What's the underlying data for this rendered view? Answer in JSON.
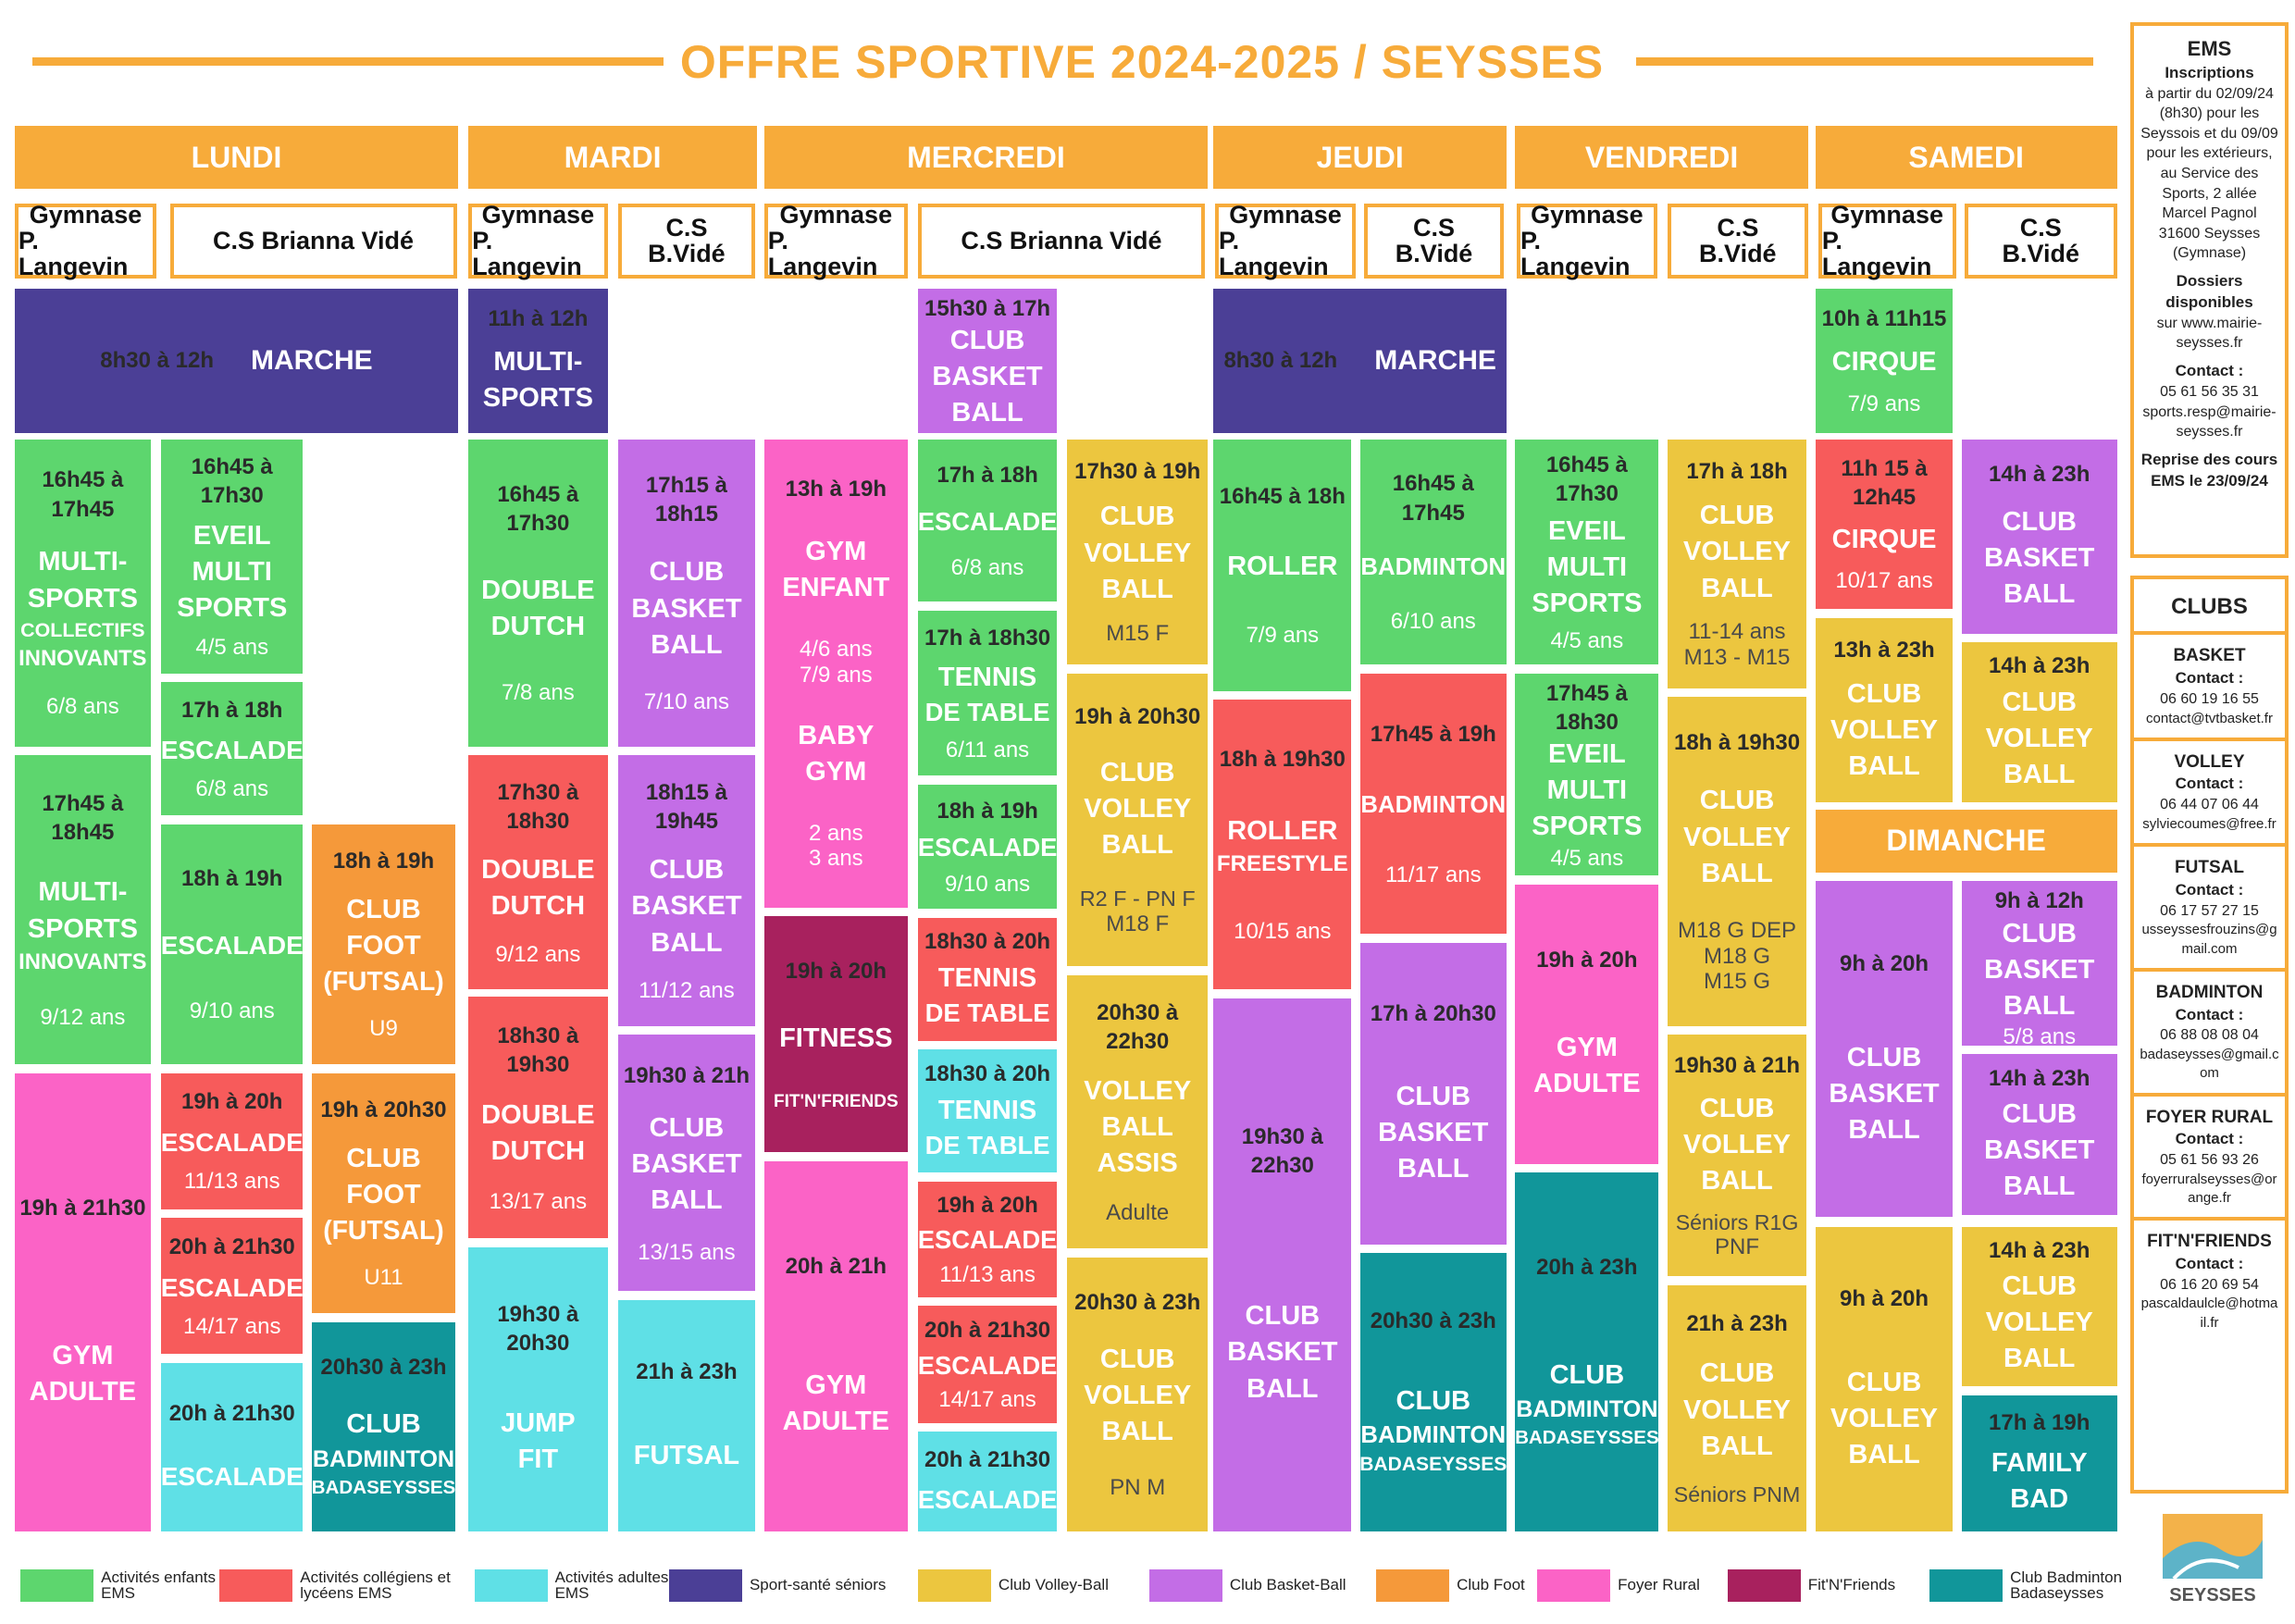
{
  "title": "OFFRE SPORTIVE 2024-2025 / SEYSSES",
  "days": [
    "LUNDI",
    "MARDI",
    "MERCREDI",
    "JEUDI",
    "VENDREDI",
    "SAMEDI"
  ],
  "dimanche": "DIMANCHE",
  "venues": [
    [
      "Gymnase",
      "P. Langevin"
    ],
    [
      "C.S Brianna Vidé"
    ],
    [
      "Gymnase",
      "P. Langevin"
    ],
    [
      "C.S",
      "B.Vidé"
    ],
    [
      "Gymnase",
      "P. Langevin"
    ],
    [
      "C.S Brianna Vidé"
    ],
    [
      "Gymnase",
      "P. Langevin"
    ],
    [
      "C.S",
      "B.Vidé"
    ],
    [
      "Gymnase",
      "P. Langevin"
    ],
    [
      "C.S",
      "B.Vidé"
    ],
    [
      "Gymnase",
      "P. Langevin"
    ],
    [
      "C.S",
      "B.Vidé"
    ]
  ],
  "blocks": [
    {
      "color": "#4b3f96",
      "time": "8h30 à 12h",
      "title": [
        "MARCHE"
      ],
      "info": []
    },
    {
      "color": "#5dd66e",
      "time": "16h45 à 17h45",
      "title": [
        "MULTI-",
        "SPORTS",
        "COLLECTIFS",
        "INNOVANTS"
      ],
      "info": [
        "6/8 ans"
      ]
    },
    {
      "color": "#5dd66e",
      "time": "17h45 à 18h45",
      "title": [
        "MULTI-",
        "SPORTS",
        "INNOVANTS"
      ],
      "info": [
        "9/12 ans"
      ]
    },
    {
      "color": "#fb63c6",
      "time": "19h à 21h30",
      "title": [
        "GYM",
        "ADULTE"
      ],
      "info": []
    },
    {
      "color": "#5dd66e",
      "time": "16h45 à 17h30",
      "title": [
        "EVEIL",
        "MULTI",
        "SPORTS"
      ],
      "info": [
        "4/5 ans"
      ]
    },
    {
      "color": "#5dd66e",
      "time": "17h à 18h",
      "title": [
        "ESCALADE"
      ],
      "info": [
        "6/8 ans"
      ]
    },
    {
      "color": "#5dd66e",
      "time": "18h à 19h",
      "title": [
        "ESCALADE"
      ],
      "info": [
        "9/10 ans"
      ]
    },
    {
      "color": "#f75b5b",
      "time": "19h à 20h",
      "title": [
        "ESCALADE"
      ],
      "info": [
        "11/13 ans"
      ]
    },
    {
      "color": "#f75b5b",
      "time": "20h à 21h30",
      "title": [
        "ESCALADE"
      ],
      "info": [
        "14/17 ans"
      ]
    },
    {
      "color": "#5fe0e6",
      "time": "20h à 21h30",
      "title": [
        "ESCALADE"
      ],
      "info": []
    },
    {
      "color": "#f5993a",
      "time": "18h à 19h",
      "title": [
        "CLUB",
        "FOOT",
        "(FUTSAL)"
      ],
      "info": [
        "U9"
      ]
    },
    {
      "color": "#f5993a",
      "time": "19h à 20h30",
      "title": [
        "CLUB",
        "FOOT",
        "(FUTSAL)"
      ],
      "info": [
        "U11"
      ]
    },
    {
      "color": "#11969a",
      "time": "20h30 à 23h",
      "title": [
        "CLUB",
        "BADMINTON",
        "BADASEYSSES"
      ],
      "info": []
    },
    {
      "color": "#4b3f96",
      "time": "11h à 12h",
      "title": [
        "MULTI-",
        "SPORTS"
      ],
      "info": []
    },
    {
      "color": "#5dd66e",
      "time": "16h45 à 17h30",
      "title": [
        "DOUBLE",
        "DUTCH"
      ],
      "info": [
        "7/8 ans"
      ]
    },
    {
      "color": "#f75b5b",
      "time": "17h30 à 18h30",
      "title": [
        "DOUBLE",
        "DUTCH"
      ],
      "info": [
        "9/12 ans"
      ]
    },
    {
      "color": "#f75b5b",
      "time": "18h30 à 19h30",
      "title": [
        "DOUBLE",
        "DUTCH"
      ],
      "info": [
        "13/17 ans"
      ]
    },
    {
      "color": "#5fe0e6",
      "time": "19h30 à 20h30",
      "title": [
        "JUMP",
        "FIT"
      ],
      "info": []
    },
    {
      "color": "#c36de6",
      "time": "17h15 à 18h15",
      "title": [
        "CLUB",
        "BASKET",
        "BALL"
      ],
      "info": [
        "7/10 ans"
      ]
    },
    {
      "color": "#c36de6",
      "time": "18h15 à 19h45",
      "title": [
        "CLUB",
        "BASKET",
        "BALL"
      ],
      "info": [
        "11/12 ans"
      ]
    },
    {
      "color": "#c36de6",
      "time": "19h30 à 21h",
      "title": [
        "CLUB",
        "BASKET",
        "BALL"
      ],
      "info": [
        "13/15 ans"
      ]
    },
    {
      "color": "#5fe0e6",
      "time": "21h à 23h",
      "title": [
        "FUTSAL"
      ],
      "info": []
    },
    {
      "color": "#fb63c6",
      "time": "13h à 19h",
      "title": [
        "GYM",
        "ENFANT"
      ],
      "info": [
        "4/6 ans",
        "7/9 ans"
      ],
      "title2": [
        "BABY",
        "GYM"
      ],
      "info2": [
        "2 ans",
        "3 ans"
      ]
    },
    {
      "color": "#a8215e",
      "time": "19h à 20h",
      "title": [
        "FITNESS"
      ],
      "info": [
        "FIT'N'FRIENDS"
      ]
    },
    {
      "color": "#fb63c6",
      "time": "20h à 21h",
      "title": [
        "GYM",
        "ADULTE"
      ],
      "info": []
    },
    {
      "color": "#c36de6",
      "time": "15h30 à 17h",
      "title": [
        "CLUB",
        "BASKET",
        "BALL"
      ],
      "info": []
    },
    {
      "color": "#5dd66e",
      "time": "17h à 18h",
      "title": [
        "ESCALADE"
      ],
      "info": [
        "6/8 ans"
      ]
    },
    {
      "color": "#5dd66e",
      "time": "17h à 18h30",
      "title": [
        "TENNIS",
        "DE TABLE"
      ],
      "info": [
        "6/11 ans"
      ]
    },
    {
      "color": "#5dd66e",
      "time": "18h à 19h",
      "title": [
        "ESCALADE"
      ],
      "info": [
        "9/10 ans"
      ]
    },
    {
      "color": "#f75b5b",
      "time": "18h30 à 20h",
      "title": [
        "TENNIS",
        "DE TABLE"
      ],
      "info": []
    },
    {
      "color": "#5fe0e6",
      "time": "18h30 à 20h",
      "title": [
        "TENNIS",
        "DE TABLE"
      ],
      "info": []
    },
    {
      "color": "#f75b5b",
      "time": "19h à 20h",
      "title": [
        "ESCALADE"
      ],
      "info": [
        "11/13 ans"
      ]
    },
    {
      "color": "#f75b5b",
      "time": "20h à 21h30",
      "title": [
        "ESCALADE"
      ],
      "info": [
        "14/17 ans"
      ]
    },
    {
      "color": "#5fe0e6",
      "time": "20h à 21h30",
      "title": [
        "ESCALADE"
      ],
      "info": []
    },
    {
      "color": "#ecc63f",
      "time": "17h30 à 19h",
      "title": [
        "CLUB",
        "VOLLEY",
        "BALL"
      ],
      "info": [
        "M15 F"
      ]
    },
    {
      "color": "#ecc63f",
      "time": "19h à 20h30",
      "title": [
        "CLUB",
        "VOLLEY",
        "BALL"
      ],
      "info": [
        "R2 F - PN F",
        "M18 F"
      ]
    },
    {
      "color": "#ecc63f",
      "time": "20h30 à 22h30",
      "title": [
        "VOLLEY",
        "BALL",
        "ASSIS"
      ],
      "info": [
        "Adulte"
      ]
    },
    {
      "color": "#ecc63f",
      "time": "20h30 à 23h",
      "title": [
        "CLUB",
        "VOLLEY",
        "BALL"
      ],
      "info": [
        "PN M"
      ]
    },
    {
      "color": "#4b3f96",
      "time": "8h30 à 12h",
      "title": [
        "MARCHE"
      ],
      "info": []
    },
    {
      "color": "#5dd66e",
      "time": "16h45 à 18h",
      "title": [
        "ROLLER"
      ],
      "info": [
        "7/9 ans"
      ]
    },
    {
      "color": "#f75b5b",
      "time": "18h à 19h30",
      "title": [
        "ROLLER",
        "FREESTYLE"
      ],
      "info": [
        "10/15 ans"
      ]
    },
    {
      "color": "#c36de6",
      "time": "19h30 à 22h30",
      "title": [
        "CLUB",
        "BASKET",
        "BALL"
      ],
      "info": []
    },
    {
      "color": "#5dd66e",
      "time": "16h45 à 17h45",
      "title": [
        "BADMINTON"
      ],
      "info": [
        "6/10 ans"
      ]
    },
    {
      "color": "#f75b5b",
      "time": "17h45 à 19h",
      "title": [
        "BADMINTON"
      ],
      "info": [
        "11/17 ans"
      ]
    },
    {
      "color": "#c36de6",
      "time": "17h à 20h30",
      "title": [
        "CLUB",
        "BASKET",
        "BALL"
      ],
      "info": []
    },
    {
      "color": "#11969a",
      "time": "20h30 à 23h",
      "title": [
        "CLUB",
        "BADMINTON",
        "BADASEYSSES"
      ],
      "info": []
    },
    {
      "color": "#5dd66e",
      "time": "16h45 à 17h30",
      "title": [
        "EVEIL",
        "MULTI",
        "SPORTS"
      ],
      "info": [
        "4/5 ans"
      ]
    },
    {
      "color": "#5dd66e",
      "time": "17h45 à 18h30",
      "title": [
        "EVEIL",
        "MULTI",
        "SPORTS"
      ],
      "info": [
        "4/5 ans"
      ]
    },
    {
      "color": "#fb63c6",
      "time": "19h à 20h",
      "title": [
        "GYM",
        "ADULTE"
      ],
      "info": []
    },
    {
      "color": "#11969a",
      "time": "20h à 23h",
      "title": [
        "CLUB",
        "BADMINTON",
        "BADASEYSSES"
      ],
      "info": []
    },
    {
      "color": "#ecc63f",
      "time": "17h à 18h",
      "title": [
        "CLUB",
        "VOLLEY",
        "BALL"
      ],
      "info": [
        "11-14 ans",
        "M13 - M15"
      ]
    },
    {
      "color": "#ecc63f",
      "time": "18h à 19h30",
      "title": [
        "CLUB",
        "VOLLEY",
        "BALL"
      ],
      "info": [
        "M18 G DEP",
        "M18 G",
        "M15 G"
      ]
    },
    {
      "color": "#ecc63f",
      "time": "19h30 à 21h",
      "title": [
        "CLUB",
        "VOLLEY",
        "BALL"
      ],
      "info": [
        "Séniors R1G",
        "PNF"
      ]
    },
    {
      "color": "#ecc63f",
      "time": "21h à 23h",
      "title": [
        "CLUB",
        "VOLLEY",
        "BALL"
      ],
      "info": [
        "Séniors PNM"
      ]
    },
    {
      "color": "#5dd66e",
      "time": "10h à 11h15",
      "title": [
        "CIRQUE"
      ],
      "info": [
        "7/9 ans"
      ]
    },
    {
      "color": "#f75b5b",
      "time": "11h 15 à 12h45",
      "title": [
        "CIRQUE"
      ],
      "info": [
        "10/17 ans"
      ]
    },
    {
      "color": "#ecc63f",
      "time": "13h à 23h",
      "title": [
        "CLUB",
        "VOLLEY",
        "BALL"
      ],
      "info": []
    },
    {
      "color": "#c36de6",
      "time": "14h à 23h",
      "title": [
        "CLUB",
        "BASKET",
        "BALL"
      ],
      "info": []
    },
    {
      "color": "#ecc63f",
      "time": "14h à 23h",
      "title": [
        "CLUB",
        "VOLLEY",
        "BALL"
      ],
      "info": []
    },
    {
      "color": "#c36de6",
      "time": "9h à 20h",
      "title": [
        "CLUB",
        "BASKET",
        "BALL"
      ],
      "info": []
    },
    {
      "color": "#ecc63f",
      "time": "9h à 20h",
      "title": [
        "CLUB",
        "VOLLEY",
        "BALL"
      ],
      "info": []
    },
    {
      "color": "#c36de6",
      "time": "9h à 12h",
      "title": [
        "CLUB",
        "BASKET",
        "BALL"
      ],
      "info": [
        "5/8 ans"
      ]
    },
    {
      "color": "#c36de6",
      "time": "14h à 23h",
      "title": [
        "CLUB",
        "BASKET",
        "BALL"
      ],
      "info": []
    },
    {
      "color": "#ecc63f",
      "time": "14h à 23h",
      "title": [
        "CLUB",
        "VOLLEY",
        "BALL"
      ],
      "info": []
    },
    {
      "color": "#11969a",
      "time": "17h à 19h",
      "title": [
        "FAMILY",
        "BAD"
      ],
      "info": []
    }
  ],
  "legend": [
    {
      "label": "Activités enfants EMS",
      "color": "#5dd66e"
    },
    {
      "label": "Activités collégiens et lycéens EMS",
      "color": "#f75b5b"
    },
    {
      "label": "Activités adultes EMS",
      "color": "#5fe0e6"
    },
    {
      "label": "Sport-santé séniors",
      "color": "#4b3f96"
    },
    {
      "label": "Club Volley-Ball",
      "color": "#ecc63f"
    },
    {
      "label": "Club Basket-Ball",
      "color": "#c36de6"
    },
    {
      "label": "Club Foot",
      "color": "#f5993a"
    },
    {
      "label": "Foyer Rural",
      "color": "#fb63c6"
    },
    {
      "label": "Fit'N'Friends",
      "color": "#a8215e"
    },
    {
      "label": "Club Badminton Badaseysses",
      "color": "#11969a"
    }
  ],
  "sidebar": {
    "ems": {
      "heading": "EMS",
      "inscriptions": "Inscriptions",
      "inscriptions_text": "à partir du 02/09/24 (8h30) pour les Seyssois et du 09/09 pour les extérieurs, au Service des Sports, 2 allée Marcel Pagnol 31600 Seysses (Gymnase)",
      "dossiers": "Dossiers disponibles",
      "dossiers_text": "sur www.mairie-seysses.fr",
      "contact": "Contact :",
      "phone": "05 61 56 35 31",
      "email": "sports.resp@mairie-seysses.fr",
      "reprise": "Reprise des cours EMS le 23/09/24"
    },
    "clubs_heading": "CLUBS",
    "clubs": [
      {
        "name": "BASKET",
        "contact": "Contact :",
        "phone": "06 60 19 16 55",
        "email": "contact@tvtbasket.fr"
      },
      {
        "name": "VOLLEY",
        "contact": "Contact :",
        "phone": "06 44 07 06 44",
        "email": "sylviecoumes@free.fr"
      },
      {
        "name": "FUTSAL",
        "contact": "Contact :",
        "phone": "06 17 57 27 15",
        "email": "usseyssesfrouzins@gmail.com"
      },
      {
        "name": "BADMINTON",
        "contact": "Contact :",
        "phone": "06 88 08 08 04",
        "email": "badaseysses@gmail.com"
      },
      {
        "name": "FOYER RURAL",
        "contact": "Contact :",
        "phone": "05 61 56 93 26",
        "email": "foyerruralseysses@orange.fr"
      },
      {
        "name": "FIT'N'FRIENDS",
        "contact": "Contact :",
        "phone": "06 16 20 69 54",
        "email": "pascaldaulcle@hotmail.fr"
      }
    ]
  },
  "logo_text": "SEYSSES"
}
